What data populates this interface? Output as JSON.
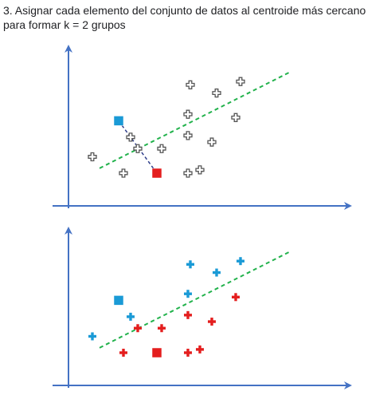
{
  "heading": {
    "line1": "3. Asignar cada elemento del conjunto de datos al centroide más cercano",
    "line2": "para formar k = 2 grupos"
  },
  "colors": {
    "axis": "#4472c4",
    "boundary": "#22b24c",
    "point_unassigned": "#555555",
    "cluster_blue": "#1a9ad6",
    "cluster_red": "#e41e1e",
    "distance_link": "#2f3e8a"
  },
  "chart_data": [
    {
      "type": "scatter",
      "name": "step-distances",
      "points": [
        {
          "x": 1.0,
          "y": 3.0,
          "group": "none"
        },
        {
          "x": 2.3,
          "y": 2.0,
          "group": "none"
        },
        {
          "x": 2.6,
          "y": 4.2,
          "group": "none"
        },
        {
          "x": 2.9,
          "y": 3.5,
          "group": "none"
        },
        {
          "x": 3.9,
          "y": 3.5,
          "group": "none"
        },
        {
          "x": 5.1,
          "y": 7.4,
          "group": "none"
        },
        {
          "x": 6.2,
          "y": 6.9,
          "group": "none"
        },
        {
          "x": 7.2,
          "y": 7.6,
          "group": "none"
        },
        {
          "x": 5.0,
          "y": 5.6,
          "group": "none"
        },
        {
          "x": 7.0,
          "y": 5.4,
          "group": "none"
        },
        {
          "x": 5.0,
          "y": 4.3,
          "group": "none"
        },
        {
          "x": 6.0,
          "y": 3.9,
          "group": "none"
        },
        {
          "x": 5.0,
          "y": 2.0,
          "group": "none"
        },
        {
          "x": 5.5,
          "y": 2.2,
          "group": "none"
        }
      ],
      "centroids": [
        {
          "x": 2.1,
          "y": 5.2,
          "group": "blue"
        },
        {
          "x": 3.7,
          "y": 2.0,
          "group": "red"
        }
      ],
      "distance_links": [
        {
          "from": [
            2.1,
            5.2
          ],
          "to": [
            3.7,
            2.0
          ]
        }
      ],
      "boundary": {
        "from": [
          1.3,
          2.3
        ],
        "to": [
          9.3,
          8.2
        ]
      }
    },
    {
      "type": "scatter",
      "name": "step-assigned",
      "points": [
        {
          "x": 1.0,
          "y": 3.0,
          "group": "blue"
        },
        {
          "x": 2.6,
          "y": 4.2,
          "group": "blue"
        },
        {
          "x": 5.1,
          "y": 7.4,
          "group": "blue"
        },
        {
          "x": 6.2,
          "y": 6.9,
          "group": "blue"
        },
        {
          "x": 7.2,
          "y": 7.6,
          "group": "blue"
        },
        {
          "x": 5.0,
          "y": 5.6,
          "group": "blue"
        },
        {
          "x": 2.3,
          "y": 2.0,
          "group": "red"
        },
        {
          "x": 2.9,
          "y": 3.5,
          "group": "red"
        },
        {
          "x": 3.9,
          "y": 3.5,
          "group": "red"
        },
        {
          "x": 7.0,
          "y": 5.4,
          "group": "red"
        },
        {
          "x": 5.0,
          "y": 4.3,
          "group": "red"
        },
        {
          "x": 6.0,
          "y": 3.9,
          "group": "red"
        },
        {
          "x": 5.0,
          "y": 2.0,
          "group": "red"
        },
        {
          "x": 5.5,
          "y": 2.2,
          "group": "red"
        }
      ],
      "centroids": [
        {
          "x": 2.1,
          "y": 5.2,
          "group": "blue"
        },
        {
          "x": 3.7,
          "y": 2.0,
          "group": "red"
        }
      ],
      "distance_links": [],
      "boundary": {
        "from": [
          1.3,
          2.3
        ],
        "to": [
          9.3,
          8.2
        ]
      }
    }
  ]
}
